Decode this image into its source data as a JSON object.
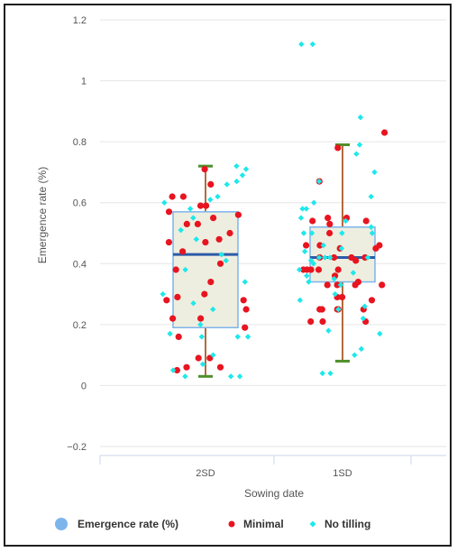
{
  "chart_data": {
    "type": "boxplot",
    "title": "",
    "xlabel": "Sowing date",
    "ylabel": "Emergence rate (%)",
    "ylim": [
      -0.2,
      1.2
    ],
    "yticks": [
      -0.2,
      0,
      0.2,
      0.4,
      0.6,
      0.8,
      1,
      1.2
    ],
    "ytick_labels": [
      "−0.2",
      "0",
      "0.2",
      "0.4",
      "0.6",
      "0.8",
      "1",
      "1.2"
    ],
    "grid": true,
    "legend_position": "bottom",
    "categories": [
      "2SD",
      "1SD"
    ],
    "boxes": [
      {
        "category": "2SD",
        "min": 0.03,
        "q1": 0.19,
        "median": 0.43,
        "q3": 0.57,
        "max": 0.72
      },
      {
        "category": "1SD",
        "min": 0.08,
        "q1": 0.34,
        "median": 0.42,
        "q3": 0.52,
        "max": 0.79
      }
    ],
    "series": [
      {
        "name": "Emergence rate (%)",
        "kind": "box",
        "color": "#7cb5ec"
      },
      {
        "name": "Minimal",
        "kind": "scatter",
        "color": "#e8141f",
        "points": [
          [
            "2SD",
            0.71
          ],
          [
            "2SD",
            0.66
          ],
          [
            "2SD",
            0.62
          ],
          [
            "2SD",
            0.62
          ],
          [
            "2SD",
            0.59
          ],
          [
            "2SD",
            0.59
          ],
          [
            "2SD",
            0.57
          ],
          [
            "2SD",
            0.56
          ],
          [
            "2SD",
            0.55
          ],
          [
            "2SD",
            0.53
          ],
          [
            "2SD",
            0.53
          ],
          [
            "2SD",
            0.5
          ],
          [
            "2SD",
            0.48
          ],
          [
            "2SD",
            0.47
          ],
          [
            "2SD",
            0.47
          ],
          [
            "2SD",
            0.44
          ],
          [
            "2SD",
            0.4
          ],
          [
            "2SD",
            0.38
          ],
          [
            "2SD",
            0.34
          ],
          [
            "2SD",
            0.3
          ],
          [
            "2SD",
            0.29
          ],
          [
            "2SD",
            0.28
          ],
          [
            "2SD",
            0.28
          ],
          [
            "2SD",
            0.25
          ],
          [
            "2SD",
            0.22
          ],
          [
            "2SD",
            0.22
          ],
          [
            "2SD",
            0.19
          ],
          [
            "2SD",
            0.16
          ],
          [
            "2SD",
            0.09
          ],
          [
            "2SD",
            0.09
          ],
          [
            "2SD",
            0.06
          ],
          [
            "2SD",
            0.06
          ],
          [
            "2SD",
            0.05
          ],
          [
            "1SD",
            0.83
          ],
          [
            "1SD",
            0.78
          ],
          [
            "1SD",
            0.67
          ],
          [
            "1SD",
            0.55
          ],
          [
            "1SD",
            0.55
          ],
          [
            "1SD",
            0.54
          ],
          [
            "1SD",
            0.54
          ],
          [
            "1SD",
            0.53
          ],
          [
            "1SD",
            0.5
          ],
          [
            "1SD",
            0.46
          ],
          [
            "1SD",
            0.46
          ],
          [
            "1SD",
            0.46
          ],
          [
            "1SD",
            0.45
          ],
          [
            "1SD",
            0.45
          ],
          [
            "1SD",
            0.42
          ],
          [
            "1SD",
            0.42
          ],
          [
            "1SD",
            0.42
          ],
          [
            "1SD",
            0.42
          ],
          [
            "1SD",
            0.41
          ],
          [
            "1SD",
            0.38
          ],
          [
            "1SD",
            0.38
          ],
          [
            "1SD",
            0.38
          ],
          [
            "1SD",
            0.38
          ],
          [
            "1SD",
            0.38
          ],
          [
            "1SD",
            0.36
          ],
          [
            "1SD",
            0.34
          ],
          [
            "1SD",
            0.33
          ],
          [
            "1SD",
            0.33
          ],
          [
            "1SD",
            0.33
          ],
          [
            "1SD",
            0.33
          ],
          [
            "1SD",
            0.29
          ],
          [
            "1SD",
            0.29
          ],
          [
            "1SD",
            0.28
          ],
          [
            "1SD",
            0.25
          ],
          [
            "1SD",
            0.25
          ],
          [
            "1SD",
            0.25
          ],
          [
            "1SD",
            0.25
          ],
          [
            "1SD",
            0.25
          ],
          [
            "1SD",
            0.21
          ],
          [
            "1SD",
            0.21
          ],
          [
            "1SD",
            0.21
          ]
        ]
      },
      {
        "name": "No tilling",
        "kind": "scatter",
        "color": "#1ee8ea",
        "points": [
          [
            "2SD",
            0.72
          ],
          [
            "2SD",
            0.71
          ],
          [
            "2SD",
            0.69
          ],
          [
            "2SD",
            0.67
          ],
          [
            "2SD",
            0.66
          ],
          [
            "2SD",
            0.62
          ],
          [
            "2SD",
            0.61
          ],
          [
            "2SD",
            0.6
          ],
          [
            "2SD",
            0.58
          ],
          [
            "2SD",
            0.55
          ],
          [
            "2SD",
            0.51
          ],
          [
            "2SD",
            0.48
          ],
          [
            "2SD",
            0.43
          ],
          [
            "2SD",
            0.41
          ],
          [
            "2SD",
            0.38
          ],
          [
            "2SD",
            0.34
          ],
          [
            "2SD",
            0.3
          ],
          [
            "2SD",
            0.27
          ],
          [
            "2SD",
            0.25
          ],
          [
            "2SD",
            0.2
          ],
          [
            "2SD",
            0.17
          ],
          [
            "2SD",
            0.16
          ],
          [
            "2SD",
            0.16
          ],
          [
            "2SD",
            0.16
          ],
          [
            "2SD",
            0.1
          ],
          [
            "2SD",
            0.07
          ],
          [
            "2SD",
            0.05
          ],
          [
            "2SD",
            0.03
          ],
          [
            "2SD",
            0.03
          ],
          [
            "2SD",
            0.03
          ],
          [
            "1SD",
            1.12
          ],
          [
            "1SD",
            1.12
          ],
          [
            "1SD",
            0.88
          ],
          [
            "1SD",
            0.79
          ],
          [
            "1SD",
            0.76
          ],
          [
            "1SD",
            0.7
          ],
          [
            "1SD",
            0.67
          ],
          [
            "1SD",
            0.62
          ],
          [
            "1SD",
            0.6
          ],
          [
            "1SD",
            0.58
          ],
          [
            "1SD",
            0.58
          ],
          [
            "1SD",
            0.55
          ],
          [
            "1SD",
            0.54
          ],
          [
            "1SD",
            0.52
          ],
          [
            "1SD",
            0.5
          ],
          [
            "1SD",
            0.5
          ],
          [
            "1SD",
            0.5
          ],
          [
            "1SD",
            0.5
          ],
          [
            "1SD",
            0.46
          ],
          [
            "1SD",
            0.45
          ],
          [
            "1SD",
            0.44
          ],
          [
            "1SD",
            0.42
          ],
          [
            "1SD",
            0.42
          ],
          [
            "1SD",
            0.42
          ],
          [
            "1SD",
            0.42
          ],
          [
            "1SD",
            0.41
          ],
          [
            "1SD",
            0.4
          ],
          [
            "1SD",
            0.38
          ],
          [
            "1SD",
            0.37
          ],
          [
            "1SD",
            0.36
          ],
          [
            "1SD",
            0.35
          ],
          [
            "1SD",
            0.34
          ],
          [
            "1SD",
            0.33
          ],
          [
            "1SD",
            0.3
          ],
          [
            "1SD",
            0.28
          ],
          [
            "1SD",
            0.26
          ],
          [
            "1SD",
            0.25
          ],
          [
            "1SD",
            0.22
          ],
          [
            "1SD",
            0.18
          ],
          [
            "1SD",
            0.17
          ],
          [
            "1SD",
            0.12
          ],
          [
            "1SD",
            0.1
          ],
          [
            "1SD",
            0.04
          ],
          [
            "1SD",
            0.04
          ]
        ]
      }
    ]
  }
}
